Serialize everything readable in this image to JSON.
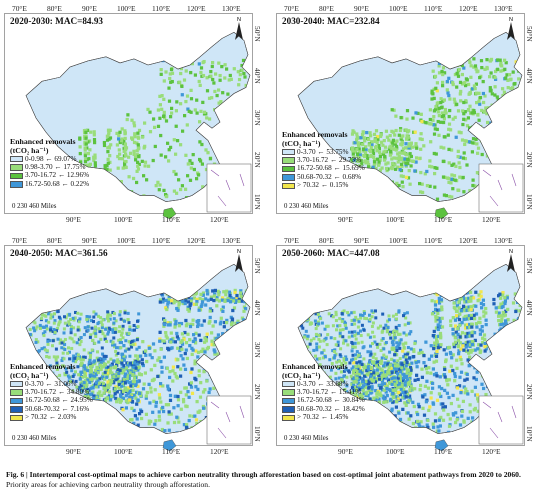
{
  "colors": {
    "c1": "#cfe6f7",
    "c2": "#99dd7a",
    "c3": "#5cc23f",
    "c4": "#3f97d8",
    "c5": "#f2e64c",
    "ocean": "#ffffff",
    "border": "#444444"
  },
  "lon_labels": [
    "70°E",
    "80°E",
    "90°E",
    "100°E",
    "110°E",
    "120°E",
    "130°E"
  ],
  "lon_labels_bottom": [
    "90°E",
    "100°E",
    "110°E",
    "120°E"
  ],
  "lat_labels": [
    "50°N",
    "40°N",
    "30°N",
    "20°N",
    "10°N"
  ],
  "north_label": "N",
  "scale_label": "0   230  460 Miles",
  "legend_title_1": "Enhanced removals",
  "legend_title_2": "(tCO₂ ha⁻¹)",
  "panels": [
    {
      "title": "2020-2030: MAC=84.93",
      "legend": [
        {
          "label": "0-0.98 ← 69.07%",
          "color": "#cfe6f7"
        },
        {
          "label": "0.98-3.70 ← 17.75%",
          "color": "#99dd7a"
        },
        {
          "label": "3.70-16.72 ← 12.96%",
          "color": "#5cc23f"
        },
        {
          "label": "16.72-50.68 ← 0.22%",
          "color": "#3f97d8"
        }
      ]
    },
    {
      "title": "2030-2040: MAC=232.84",
      "legend": [
        {
          "label": "0-3.70 ← 53.75%",
          "color": "#cfe6f7"
        },
        {
          "label": "3.70-16.72 ← 29.73%",
          "color": "#99dd7a"
        },
        {
          "label": "16.72-50.68 ← 15.69%",
          "color": "#5cc23f"
        },
        {
          "label": "50.68-70.32 ← 0.68%",
          "color": "#3f97d8"
        },
        {
          "label": "> 70.32 ← 0.15%",
          "color": "#f2e64c"
        }
      ]
    },
    {
      "title": "2040-2050: MAC=361.56",
      "legend": [
        {
          "label": "0-3.70 ← 31.06%",
          "color": "#cfe6f7"
        },
        {
          "label": "3.70-16.72 ← 34.80%",
          "color": "#99dd7a"
        },
        {
          "label": "16.72-50.68 ← 24.95%",
          "color": "#3f97d8"
        },
        {
          "label": "50.68-70.32 ← 7.16%",
          "color": "#1f5fb5"
        },
        {
          "label": "> 70.32 ← 2.03%",
          "color": "#f2e64c"
        }
      ]
    },
    {
      "title": "2050-2060: MAC=447.08",
      "legend": [
        {
          "label": "0-3.70 ← 33.88%",
          "color": "#cfe6f7"
        },
        {
          "label": "3.70-16.72 ← 15.41%",
          "color": "#99dd7a"
        },
        {
          "label": "16.72-50.68 ← 30.84%",
          "color": "#3f97d8"
        },
        {
          "label": "50.68-70.32 ← 18.42%",
          "color": "#1f5fb5"
        },
        {
          "label": "> 70.32 ← 1.45%",
          "color": "#f2e64c"
        }
      ]
    }
  ],
  "caption": {
    "prefix": "Fig. 6 | Intertemporal cost-optimal maps to achieve carbon neutrality through afforestation based on cost-optimal joint abatement pathways from 2020 to 2060.",
    "line2": "Priority areas for achieving carbon neutrality through afforestation."
  }
}
